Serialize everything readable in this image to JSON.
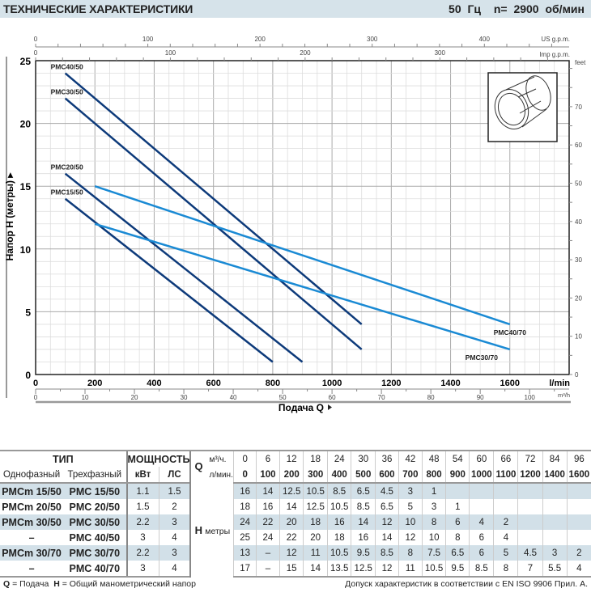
{
  "header": {
    "title": "ТЕХНИЧЕСКИЕ ХАРАКТЕРИСТИКИ",
    "freq": "50 Гц",
    "speed": "n= 2900 об/мин"
  },
  "chart_data": {
    "type": "line",
    "ylabel": "Напор H (метры)",
    "xlabel": "Подача Q",
    "xlim": [
      0,
      1800
    ],
    "ylim": [
      0,
      25
    ],
    "x_unit": "l/min",
    "x_ticks": [
      0,
      200,
      400,
      600,
      800,
      1000,
      1200,
      1400,
      1600
    ],
    "y_ticks": [
      0,
      5,
      10,
      15,
      20,
      25
    ],
    "secondary_axes": {
      "us_gpm": {
        "label": "US g.p.m.",
        "ticks": [
          0,
          100,
          200,
          300,
          400
        ]
      },
      "imp_gpm": {
        "label": "Imp g.p.m.",
        "ticks": [
          0,
          100,
          200,
          300
        ]
      },
      "m3h": {
        "label": "m³/h",
        "ticks": [
          0,
          10,
          20,
          30,
          40,
          50,
          60,
          70,
          80,
          90,
          100
        ]
      },
      "feet": {
        "label": "feet",
        "ticks": [
          0,
          10,
          20,
          30,
          40,
          50,
          60,
          70
        ]
      }
    },
    "grid": true,
    "series": [
      {
        "name": "PMC40/50",
        "color": "#0d3a7a",
        "x": [
          100,
          1100
        ],
        "y": [
          24,
          4
        ]
      },
      {
        "name": "PMC30/50",
        "color": "#0d3a7a",
        "x": [
          100,
          1100
        ],
        "y": [
          22,
          2
        ]
      },
      {
        "name": "PMC20/50",
        "color": "#0d3a7a",
        "x": [
          100,
          900
        ],
        "y": [
          16,
          1
        ]
      },
      {
        "name": "PMC15/50",
        "color": "#0d3a7a",
        "x": [
          100,
          800
        ],
        "y": [
          14,
          1
        ]
      },
      {
        "name": "PMC40/70",
        "color": "#1a8ad4",
        "x": [
          200,
          1600
        ],
        "y": [
          15,
          4
        ]
      },
      {
        "name": "PMC30/70",
        "color": "#1a8ad4",
        "x": [
          200,
          1600
        ],
        "y": [
          12,
          2
        ]
      }
    ]
  },
  "table": {
    "type_header": "ТИП",
    "power_header": "МОЩНОСТЬ",
    "single": "Однофазный",
    "three": "Трехфазный",
    "kw": "кВт",
    "hp": "ЛС",
    "q": "Q",
    "q_m3": "м³/ч.",
    "q_l": "л/мин.",
    "h": "H",
    "h_unit": "метры",
    "m3h": [
      "0",
      "6",
      "12",
      "18",
      "24",
      "30",
      "36",
      "42",
      "48",
      "54",
      "60",
      "66",
      "72",
      "84",
      "96"
    ],
    "lmin": [
      "0",
      "100",
      "200",
      "300",
      "400",
      "500",
      "600",
      "700",
      "800",
      "900",
      "1000",
      "1100",
      "1200",
      "1400",
      "1600"
    ],
    "rows": [
      {
        "single": "PMCm 15/50",
        "three": "PMC 15/50",
        "kw": "1.1",
        "hp": "1.5",
        "h": [
          "16",
          "14",
          "12.5",
          "10.5",
          "8.5",
          "6.5",
          "4.5",
          "3",
          "1",
          "",
          "",
          "",
          "",
          "",
          ""
        ]
      },
      {
        "single": "PMCm 20/50",
        "three": "PMC 20/50",
        "kw": "1.5",
        "hp": "2",
        "h": [
          "18",
          "16",
          "14",
          "12.5",
          "10.5",
          "8.5",
          "6.5",
          "5",
          "3",
          "1",
          "",
          "",
          "",
          "",
          ""
        ]
      },
      {
        "single": "PMCm 30/50",
        "three": "PMC 30/50",
        "kw": "2.2",
        "hp": "3",
        "h": [
          "24",
          "22",
          "20",
          "18",
          "16",
          "14",
          "12",
          "10",
          "8",
          "6",
          "4",
          "2",
          "",
          "",
          ""
        ]
      },
      {
        "single": "–",
        "three": "PMC 40/50",
        "kw": "3",
        "hp": "4",
        "h": [
          "25",
          "24",
          "22",
          "20",
          "18",
          "16",
          "14",
          "12",
          "10",
          "8",
          "6",
          "4",
          "",
          "",
          ""
        ]
      },
      {
        "single": "PMCm 30/70",
        "three": "PMC 30/70",
        "kw": "2.2",
        "hp": "3",
        "h": [
          "13",
          "–",
          "12",
          "11",
          "10.5",
          "9.5",
          "8.5",
          "8",
          "7.5",
          "6.5",
          "6",
          "5",
          "4.5",
          "3",
          "2"
        ]
      },
      {
        "single": "–",
        "three": "PMC 40/70",
        "kw": "3",
        "hp": "4",
        "h": [
          "17",
          "–",
          "15",
          "14",
          "13.5",
          "12.5",
          "12",
          "11",
          "10.5",
          "9.5",
          "8.5",
          "8",
          "7",
          "5.5",
          "4"
        ]
      }
    ]
  },
  "footer": {
    "q_key": "Q",
    "q_def": " = Подача",
    "h_key": "H",
    "h_def": " = Общий манометрический напор",
    "note": "Допуск характеристик в соответствии с EN ISO 9906 Прил. А."
  }
}
